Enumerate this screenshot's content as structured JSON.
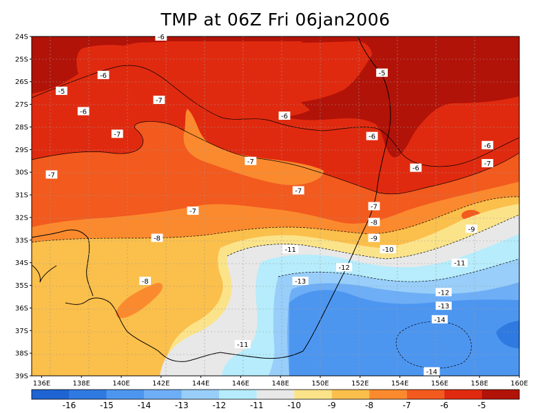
{
  "title": "TMP at 06Z Fri 06jan2006",
  "map": {
    "lat_labels": [
      "24S",
      "25S",
      "26S",
      "27S",
      "28S",
      "29S",
      "30S",
      "31S",
      "32S",
      "33S",
      "34S",
      "35S",
      "36S",
      "37S",
      "38S",
      "39S"
    ],
    "lon_labels": [
      "136E",
      "138E",
      "140E",
      "142E",
      "144E",
      "146E",
      "148E",
      "150E",
      "152E",
      "154E",
      "156E",
      "158E",
      "160E"
    ],
    "contour_labels": [
      {
        "text": "-6",
        "lon": 142.0,
        "lat": -24.0
      },
      {
        "text": "-6",
        "lon": 139.1,
        "lat": -25.7
      },
      {
        "text": "-5",
        "lon": 137.0,
        "lat": -26.4
      },
      {
        "text": "-6",
        "lon": 138.1,
        "lat": -27.3
      },
      {
        "text": "-7",
        "lon": 141.9,
        "lat": -26.8
      },
      {
        "text": "-7",
        "lon": 139.8,
        "lat": -28.3
      },
      {
        "text": "-6",
        "lon": 148.2,
        "lat": -27.5
      },
      {
        "text": "-5",
        "lon": 153.1,
        "lat": -25.6
      },
      {
        "text": "-6",
        "lon": 152.6,
        "lat": -28.4
      },
      {
        "text": "-6",
        "lon": 158.4,
        "lat": -28.8
      },
      {
        "text": "-7",
        "lon": 158.4,
        "lat": -29.6
      },
      {
        "text": "-6",
        "lon": 154.8,
        "lat": -29.8
      },
      {
        "text": "-7",
        "lon": 146.5,
        "lat": -29.5
      },
      {
        "text": "-7",
        "lon": 136.5,
        "lat": -30.1
      },
      {
        "text": "-7",
        "lon": 148.9,
        "lat": -30.8
      },
      {
        "text": "-7",
        "lon": 143.6,
        "lat": -31.7
      },
      {
        "text": "-7",
        "lon": 152.7,
        "lat": -31.5
      },
      {
        "text": "-8",
        "lon": 152.7,
        "lat": -32.2
      },
      {
        "text": "-9",
        "lon": 152.7,
        "lat": -32.9
      },
      {
        "text": "-9",
        "lon": 157.6,
        "lat": -32.5
      },
      {
        "text": "-8",
        "lon": 141.8,
        "lat": -32.9
      },
      {
        "text": "-10",
        "lon": 153.4,
        "lat": -33.4
      },
      {
        "text": "-11",
        "lon": 148.5,
        "lat": -33.4
      },
      {
        "text": "-11",
        "lon": 157.0,
        "lat": -34.0
      },
      {
        "text": "-12",
        "lon": 151.2,
        "lat": -34.2
      },
      {
        "text": "-13",
        "lon": 149.0,
        "lat": -34.8
      },
      {
        "text": "-8",
        "lon": 141.2,
        "lat": -34.8
      },
      {
        "text": "-12",
        "lon": 156.2,
        "lat": -35.3
      },
      {
        "text": "-13",
        "lon": 156.2,
        "lat": -35.9
      },
      {
        "text": "-14",
        "lon": 156.0,
        "lat": -36.5
      },
      {
        "text": "-11",
        "lon": 146.1,
        "lat": -37.6
      },
      {
        "text": "-14",
        "lon": 155.6,
        "lat": -38.8
      }
    ]
  },
  "colorbar": {
    "labels": [
      "-16",
      "-15",
      "-14",
      "-13",
      "-12",
      "-11",
      "-10",
      "-9",
      "-8",
      "-7",
      "-6",
      "-5"
    ],
    "colors": [
      "#1e64d2",
      "#2f7ae0",
      "#4d96f0",
      "#6eaef6",
      "#98cef9",
      "#b6ecfb",
      "#e8e8e8",
      "#fbe38a",
      "#fbbf4b",
      "#fb8a2e",
      "#f25a1e",
      "#e02a0f",
      "#b21308"
    ]
  },
  "fill_colors": {
    "c5": "#b21308",
    "c6": "#e02a0f",
    "c7": "#f25a1e",
    "c8": "#fb8a2e",
    "c9": "#fbbf4b",
    "c10": "#fbe38a",
    "c11": "#e8e8e8",
    "c12": "#b6ecfb",
    "c13": "#98cef9",
    "c14": "#6eaef6",
    "c15": "#4d96f0",
    "c16": "#2f7ae0"
  }
}
